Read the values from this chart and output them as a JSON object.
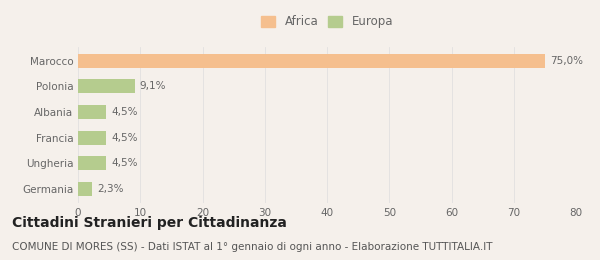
{
  "categories": [
    "Marocco",
    "Polonia",
    "Albania",
    "Francia",
    "Ungheria",
    "Germania"
  ],
  "values": [
    75.0,
    9.1,
    4.5,
    4.5,
    4.5,
    2.3
  ],
  "labels": [
    "75,0%",
    "9,1%",
    "4,5%",
    "4,5%",
    "4,5%",
    "2,3%"
  ],
  "colors": [
    "#f5bf8e",
    "#b5cc8e",
    "#b5cc8e",
    "#b5cc8e",
    "#b5cc8e",
    "#b5cc8e"
  ],
  "legend": [
    {
      "label": "Africa",
      "color": "#f5bf8e"
    },
    {
      "label": "Europa",
      "color": "#b5cc8e"
    }
  ],
  "xlim": [
    0,
    80
  ],
  "xticks": [
    0,
    10,
    20,
    30,
    40,
    50,
    60,
    70,
    80
  ],
  "title": "Cittadini Stranieri per Cittadinanza",
  "subtitle": "COMUNE DI MORES (SS) - Dati ISTAT al 1° gennaio di ogni anno - Elaborazione TUTTITALIA.IT",
  "background_color": "#f5f0eb",
  "bar_height": 0.55,
  "title_fontsize": 10,
  "subtitle_fontsize": 7.5,
  "label_fontsize": 7.5,
  "tick_fontsize": 7.5,
  "legend_fontsize": 8.5
}
